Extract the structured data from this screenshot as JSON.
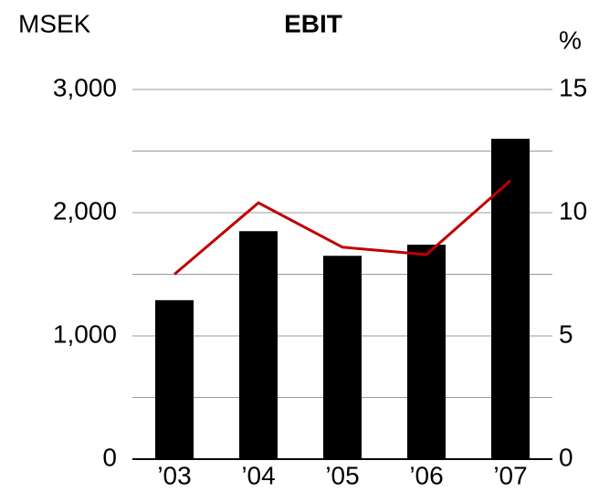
{
  "chart_data": {
    "type": "bar",
    "title": "EBIT",
    "y_label": "MSEK",
    "y2_label": "%",
    "categories": [
      "’03",
      "’04",
      "’05",
      "’06",
      "’07"
    ],
    "series": [
      {
        "type": "bar",
        "color": "#000000",
        "values": [
          1290,
          1850,
          1650,
          1740,
          2600
        ]
      },
      {
        "type": "line",
        "axis": "y2",
        "color": "#c00000",
        "values": [
          7.5,
          10.4,
          8.6,
          8.3,
          11.3
        ]
      }
    ],
    "ylim": [
      0,
      3000
    ],
    "yticks": [
      0,
      {
        "value": 1000,
        "label": "1,000"
      },
      {
        "value": 2000,
        "label": "2,000"
      },
      {
        "value": 3000,
        "label": "3,000"
      }
    ],
    "minor_yticks": [
      500,
      1500,
      2500
    ],
    "y2lim": [
      0,
      15
    ],
    "y2ticks": [
      0,
      5,
      10,
      15
    ],
    "grid": true
  }
}
